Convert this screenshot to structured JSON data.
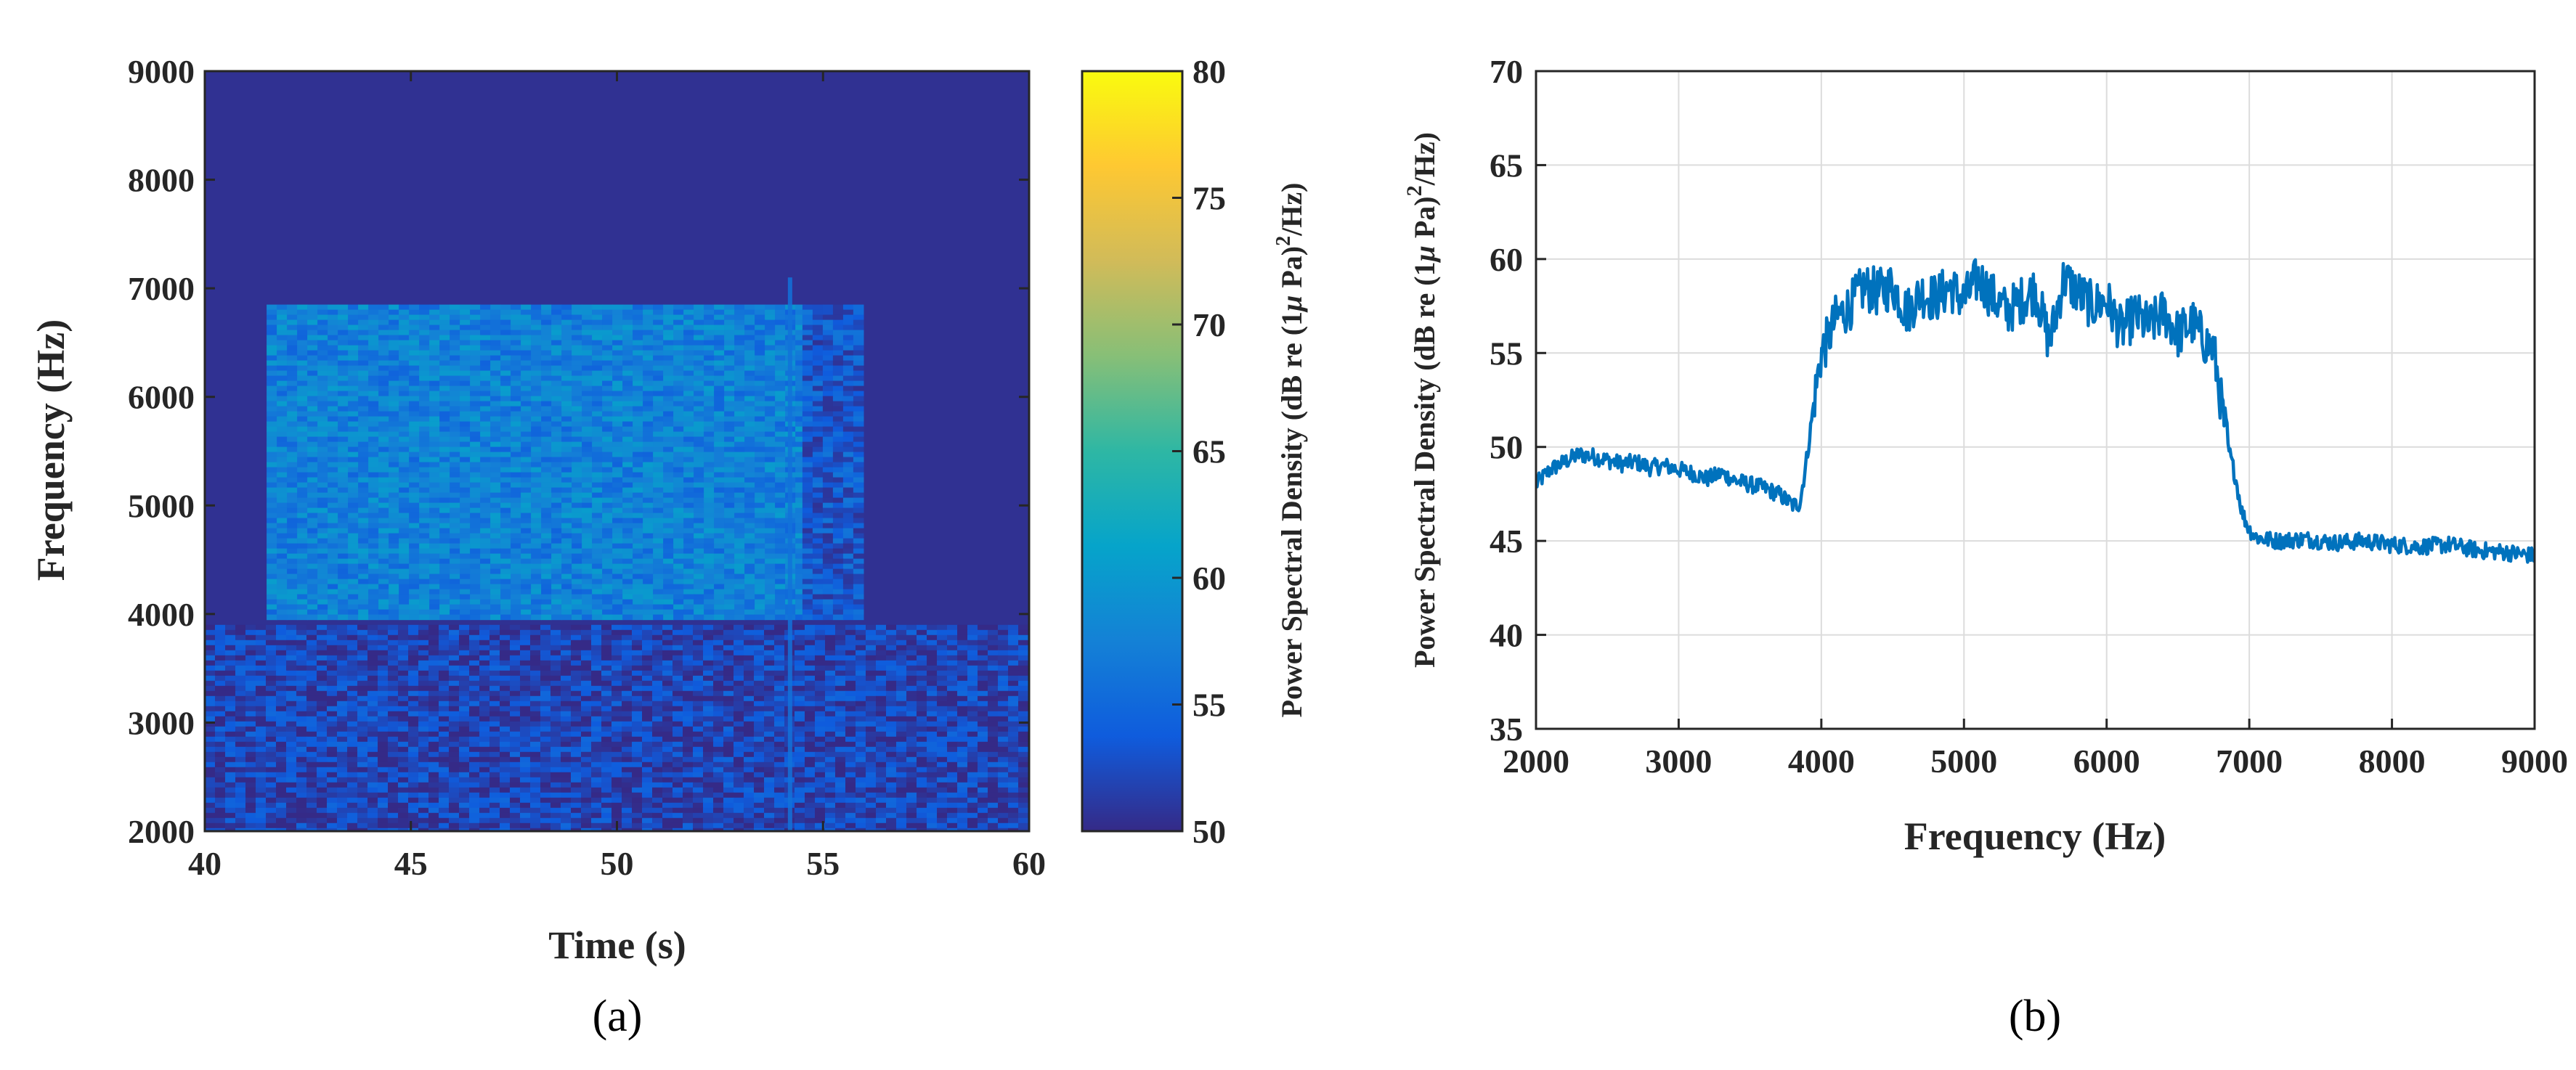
{
  "chart_data": [
    {
      "type": "heatmap",
      "panel_label": "(a)",
      "xlabel": "Time (s)",
      "ylabel": "Frequency (Hz)",
      "xlim": [
        40,
        60
      ],
      "ylim": [
        2000,
        9000
      ],
      "xticks": [
        40,
        45,
        50,
        55,
        60
      ],
      "yticks": [
        2000,
        3000,
        4000,
        5000,
        6000,
        7000,
        8000,
        9000
      ],
      "grid": false,
      "colormap": "parula",
      "colorbar": {
        "label_prefix": "Power Spectral Density (dB re (1",
        "label_mu": "μ",
        "label_mid": " Pa)",
        "label_sup": "2",
        "label_suffix": "/Hz)",
        "range": [
          50,
          80
        ],
        "ticks": [
          50,
          55,
          60,
          65,
          70,
          75,
          80
        ]
      },
      "background_level_db": 50.5,
      "regions": [
        {
          "t_start": 41.5,
          "t_end": 54.5,
          "f_start": 3950,
          "f_end": 6850,
          "level_db": 57.5
        },
        {
          "t_start": 54.5,
          "t_end": 55.8,
          "f_start": 3950,
          "f_end": 6850,
          "level_db": 53.5
        },
        {
          "t_start": 40.0,
          "t_end": 60.0,
          "f_start": 2000,
          "f_end": 3900,
          "level_db": 52.0
        }
      ],
      "vertical_streak": {
        "t": 54.2,
        "f_start": 2000,
        "f_end": 7100,
        "level_db": 56
      }
    },
    {
      "type": "line",
      "panel_label": "(b)",
      "xlabel": "Frequency (Hz)",
      "ylabel_prefix": "Power Spectral Density (dB re (1",
      "ylabel_mu": "μ",
      "ylabel_mid": " Pa)",
      "ylabel_sup": "2",
      "ylabel_suffix": "/Hz)",
      "xlim": [
        2000,
        9000
      ],
      "ylim": [
        35,
        70
      ],
      "xticks": [
        2000,
        3000,
        4000,
        5000,
        6000,
        7000,
        8000,
        9000
      ],
      "yticks": [
        35,
        40,
        45,
        50,
        55,
        60,
        65,
        70
      ],
      "grid": true,
      "color": "#0072BD",
      "series": [
        {
          "x": [
            2000,
            2100,
            2200,
            2300,
            2400,
            2500,
            2600,
            2700,
            2800,
            2900,
            3000,
            3100,
            3200,
            3300,
            3400,
            3500,
            3600,
            3700,
            3800,
            3850,
            3900,
            3950,
            4000,
            4050,
            4100,
            4200,
            4300,
            4400,
            4500,
            4600,
            4700,
            4800,
            4900,
            5000,
            5100,
            5200,
            5300,
            5400,
            5500,
            5600,
            5700,
            5800,
            5900,
            6000,
            6100,
            6200,
            6300,
            6400,
            6500,
            6600,
            6700,
            6750,
            6800,
            6850,
            6900,
            6950,
            7000,
            7050,
            7100,
            7200,
            7400,
            7600,
            7800,
            8000,
            8200,
            8400,
            8600,
            8800,
            9000
          ],
          "y": [
            48.0,
            48.8,
            49.2,
            49.6,
            49.5,
            49.3,
            49.1,
            49.2,
            48.9,
            49.0,
            48.8,
            48.6,
            48.3,
            48.6,
            48.2,
            48.0,
            47.8,
            47.5,
            46.9,
            47.0,
            49.5,
            52.5,
            55.0,
            55.8,
            56.8,
            57.5,
            58.5,
            58.2,
            58.6,
            57.2,
            58.2,
            57.9,
            58.5,
            57.8,
            59.0,
            58.0,
            57.2,
            57.8,
            58.4,
            55.5,
            59.0,
            58.2,
            57.5,
            57.8,
            56.2,
            57.0,
            56.4,
            57.2,
            56.0,
            56.6,
            55.5,
            55.2,
            52.5,
            50.0,
            48.5,
            46.5,
            45.6,
            45.2,
            45.1,
            45.0,
            45.1,
            44.9,
            45.0,
            44.8,
            44.7,
            44.8,
            44.5,
            44.4,
            44.2
          ]
        }
      ]
    }
  ]
}
